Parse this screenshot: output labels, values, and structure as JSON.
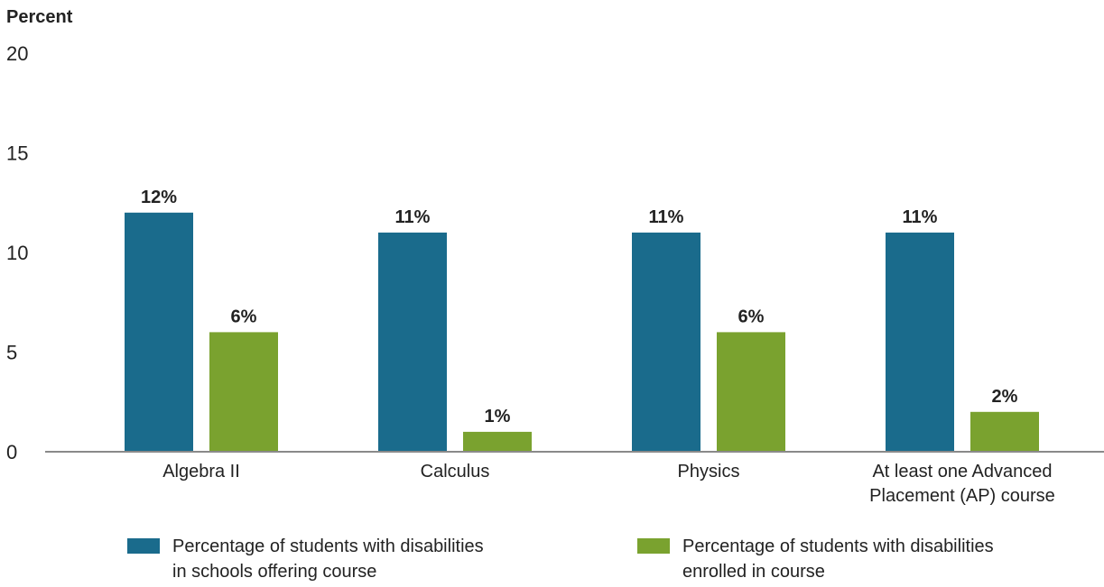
{
  "chart_data": {
    "type": "bar",
    "ylabel": "Percent",
    "ylim": [
      0,
      20
    ],
    "yticks": [
      0,
      5,
      10,
      15,
      20
    ],
    "grid": false,
    "legend_position": "bottom",
    "categories": [
      [
        "Algebra II"
      ],
      [
        "Calculus"
      ],
      [
        "Physics"
      ],
      [
        "At least one Advanced",
        "Placement (AP) course"
      ]
    ],
    "series": [
      {
        "name": [
          "Percentage of students with disabilities",
          "in schools offering course"
        ],
        "color": "#1a6b8c",
        "values": [
          12,
          11,
          11,
          11
        ],
        "labels": [
          "12%",
          "11%",
          "11%",
          "11%"
        ]
      },
      {
        "name": [
          "Percentage of students with disabilities",
          "enrolled in course"
        ],
        "color": "#7aa22f",
        "values": [
          6,
          1,
          6,
          2
        ],
        "labels": [
          "6%",
          "1%",
          "6%",
          "2%"
        ]
      }
    ]
  }
}
